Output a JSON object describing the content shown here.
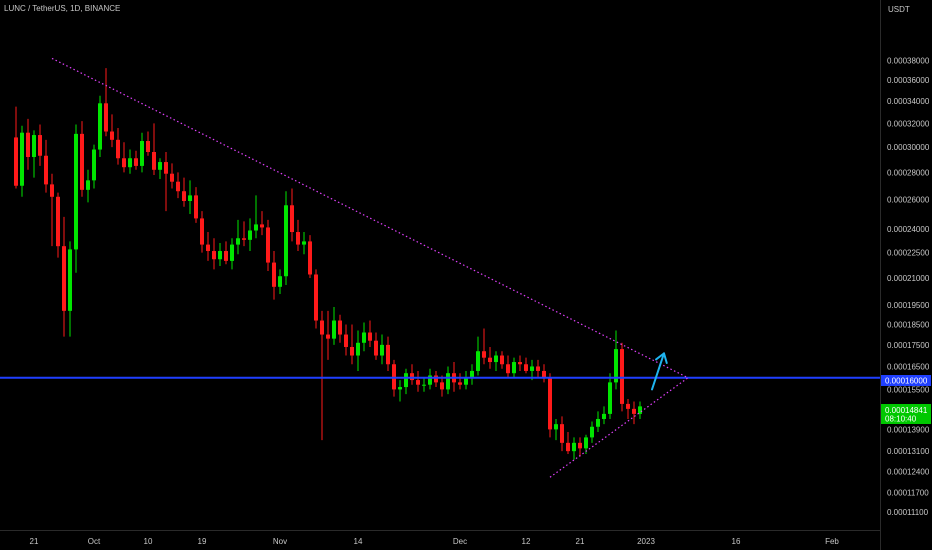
{
  "header": {
    "symbol": "LUNC / TetherUS, 1D, BINANCE"
  },
  "axis": {
    "currency": "USDT",
    "price_ticks": [
      "0.00038000",
      "0.00036000",
      "0.00034000",
      "0.00032000",
      "0.00030000",
      "0.00028000",
      "0.00026000",
      "0.00024000",
      "0.00022500",
      "0.00021000",
      "0.00019500",
      "0.00018500",
      "0.00017500",
      "0.00016500",
      "0.00015500",
      "0.00013900",
      "0.00013100",
      "0.00012400",
      "0.00011700",
      "0.00011100"
    ],
    "time_ticks": [
      "21",
      "Oct",
      "10",
      "19",
      "Nov",
      "14",
      "Dec",
      "12",
      "21",
      "2023",
      "16",
      "Feb",
      "13"
    ],
    "blue_line_label": "0.00016000",
    "current_price_label": "0.00014841",
    "countdown_label": "08:10:40"
  },
  "colors": {
    "background": "#000000",
    "up": "#00e600",
    "down": "#ff1a1a",
    "trendline": "#e040fb",
    "level_line": "#1f3fff",
    "arrow": "#1fb5f0",
    "current_price_bg": "#00c800"
  },
  "chart_data": {
    "type": "candlestick",
    "title": "LUNC / TetherUS, 1D, BINANCE",
    "y_unit": "USDT",
    "y_scale": "log",
    "ylim": [
      0.000108,
      0.000415
    ],
    "x_tick_labels": [
      "21",
      "Oct",
      "10",
      "19",
      "Nov",
      "14",
      "Dec",
      "12",
      "21",
      "2023",
      "16",
      "Feb",
      "13"
    ],
    "candles": [
      {
        "date": "2022-09-18",
        "o": 0.000308,
        "h": 0.000335,
        "l": 0.000268,
        "c": 0.00027
      },
      {
        "date": "2022-09-19",
        "o": 0.00027,
        "h": 0.000318,
        "l": 0.000262,
        "c": 0.000312
      },
      {
        "date": "2022-09-20",
        "o": 0.000312,
        "h": 0.000324,
        "l": 0.000282,
        "c": 0.000292
      },
      {
        "date": "2022-09-21",
        "o": 0.000292,
        "h": 0.000314,
        "l": 0.000276,
        "c": 0.00031
      },
      {
        "date": "2022-09-22",
        "o": 0.00031,
        "h": 0.000319,
        "l": 0.000285,
        "c": 0.000293
      },
      {
        "date": "2022-09-23",
        "o": 0.000293,
        "h": 0.000306,
        "l": 0.000265,
        "c": 0.000271
      },
      {
        "date": "2022-09-24",
        "o": 0.000271,
        "h": 0.000279,
        "l": 0.000229,
        "c": 0.000262
      },
      {
        "date": "2022-09-25",
        "o": 0.000262,
        "h": 0.000265,
        "l": 0.000222,
        "c": 0.000229
      },
      {
        "date": "2022-09-26",
        "o": 0.000229,
        "h": 0.000248,
        "l": 0.000179,
        "c": 0.000192
      },
      {
        "date": "2022-09-27",
        "o": 0.000192,
        "h": 0.000232,
        "l": 0.000179,
        "c": 0.000227
      },
      {
        "date": "2022-09-28",
        "o": 0.000227,
        "h": 0.000319,
        "l": 0.000213,
        "c": 0.000311
      },
      {
        "date": "2022-09-29",
        "o": 0.000311,
        "h": 0.000322,
        "l": 0.000262,
        "c": 0.000267
      },
      {
        "date": "2022-09-30",
        "o": 0.000267,
        "h": 0.000282,
        "l": 0.000258,
        "c": 0.000274
      },
      {
        "date": "2022-10-01",
        "o": 0.000274,
        "h": 0.000302,
        "l": 0.000268,
        "c": 0.000298
      },
      {
        "date": "2022-10-02",
        "o": 0.000298,
        "h": 0.000345,
        "l": 0.000292,
        "c": 0.000338
      },
      {
        "date": "2022-10-03",
        "o": 0.000338,
        "h": 0.000372,
        "l": 0.000309,
        "c": 0.000313
      },
      {
        "date": "2022-10-04",
        "o": 0.000313,
        "h": 0.000328,
        "l": 0.0003,
        "c": 0.000306
      },
      {
        "date": "2022-10-05",
        "o": 0.000306,
        "h": 0.000316,
        "l": 0.000286,
        "c": 0.000291
      },
      {
        "date": "2022-10-06",
        "o": 0.000291,
        "h": 0.000304,
        "l": 0.00028,
        "c": 0.000284
      },
      {
        "date": "2022-10-07",
        "o": 0.000284,
        "h": 0.000298,
        "l": 0.000279,
        "c": 0.000291
      },
      {
        "date": "2022-10-08",
        "o": 0.000291,
        "h": 0.000297,
        "l": 0.000282,
        "c": 0.000285
      },
      {
        "date": "2022-10-09",
        "o": 0.000285,
        "h": 0.000312,
        "l": 0.00028,
        "c": 0.000305
      },
      {
        "date": "2022-10-10",
        "o": 0.000305,
        "h": 0.000313,
        "l": 0.000293,
        "c": 0.000296
      },
      {
        "date": "2022-10-11",
        "o": 0.000296,
        "h": 0.00032,
        "l": 0.000278,
        "c": 0.000282
      },
      {
        "date": "2022-10-12",
        "o": 0.000282,
        "h": 0.000291,
        "l": 0.000275,
        "c": 0.000288
      },
      {
        "date": "2022-10-13",
        "o": 0.000288,
        "h": 0.000296,
        "l": 0.000252,
        "c": 0.000279
      },
      {
        "date": "2022-10-14",
        "o": 0.000279,
        "h": 0.000287,
        "l": 0.000268,
        "c": 0.000273
      },
      {
        "date": "2022-10-15",
        "o": 0.000273,
        "h": 0.00028,
        "l": 0.000261,
        "c": 0.000266
      },
      {
        "date": "2022-10-16",
        "o": 0.000266,
        "h": 0.000276,
        "l": 0.000255,
        "c": 0.000259
      },
      {
        "date": "2022-10-17",
        "o": 0.000259,
        "h": 0.000274,
        "l": 0.00025,
        "c": 0.000263
      },
      {
        "date": "2022-10-18",
        "o": 0.000263,
        "h": 0.000269,
        "l": 0.000244,
        "c": 0.000247
      },
      {
        "date": "2022-10-19",
        "o": 0.000247,
        "h": 0.000252,
        "l": 0.000225,
        "c": 0.00023
      },
      {
        "date": "2022-10-20",
        "o": 0.00023,
        "h": 0.000238,
        "l": 0.00022,
        "c": 0.000226
      },
      {
        "date": "2022-10-21",
        "o": 0.000226,
        "h": 0.000234,
        "l": 0.000215,
        "c": 0.000221
      },
      {
        "date": "2022-10-22",
        "o": 0.000221,
        "h": 0.000231,
        "l": 0.000217,
        "c": 0.000226
      },
      {
        "date": "2022-10-23",
        "o": 0.000226,
        "h": 0.000232,
        "l": 0.000218,
        "c": 0.00022
      },
      {
        "date": "2022-10-24",
        "o": 0.00022,
        "h": 0.000234,
        "l": 0.000215,
        "c": 0.00023
      },
      {
        "date": "2022-10-25",
        "o": 0.00023,
        "h": 0.000246,
        "l": 0.000224,
        "c": 0.000234
      },
      {
        "date": "2022-10-26",
        "o": 0.000234,
        "h": 0.000245,
        "l": 0.000229,
        "c": 0.000233
      },
      {
        "date": "2022-10-27",
        "o": 0.000233,
        "h": 0.000247,
        "l": 0.000226,
        "c": 0.000239
      },
      {
        "date": "2022-10-28",
        "o": 0.000239,
        "h": 0.000263,
        "l": 0.000234,
        "c": 0.000243
      },
      {
        "date": "2022-10-29",
        "o": 0.000243,
        "h": 0.000252,
        "l": 0.000236,
        "c": 0.000241
      },
      {
        "date": "2022-10-30",
        "o": 0.000241,
        "h": 0.000246,
        "l": 0.000214,
        "c": 0.000219
      },
      {
        "date": "2022-10-31",
        "o": 0.000219,
        "h": 0.000226,
        "l": 0.000198,
        "c": 0.000205
      },
      {
        "date": "2022-11-01",
        "o": 0.000205,
        "h": 0.000215,
        "l": 0.000201,
        "c": 0.000211
      },
      {
        "date": "2022-11-02",
        "o": 0.000211,
        "h": 0.000266,
        "l": 0.000206,
        "c": 0.000256
      },
      {
        "date": "2022-11-03",
        "o": 0.000256,
        "h": 0.000268,
        "l": 0.000232,
        "c": 0.000238
      },
      {
        "date": "2022-11-04",
        "o": 0.000238,
        "h": 0.000246,
        "l": 0.000226,
        "c": 0.00023
      },
      {
        "date": "2022-11-05",
        "o": 0.00023,
        "h": 0.000238,
        "l": 0.000224,
        "c": 0.000232
      },
      {
        "date": "2022-11-06",
        "o": 0.000232,
        "h": 0.000236,
        "l": 0.00021,
        "c": 0.000212
      },
      {
        "date": "2022-11-07",
        "o": 0.000212,
        "h": 0.000215,
        "l": 0.000183,
        "c": 0.000187
      },
      {
        "date": "2022-11-08",
        "o": 0.000187,
        "h": 0.000192,
        "l": 0.000135,
        "c": 0.00018
      },
      {
        "date": "2022-11-09",
        "o": 0.00018,
        "h": 0.000192,
        "l": 0.000168,
        "c": 0.000178
      },
      {
        "date": "2022-11-10",
        "o": 0.000178,
        "h": 0.000194,
        "l": 0.000175,
        "c": 0.000187
      },
      {
        "date": "2022-11-11",
        "o": 0.000187,
        "h": 0.00019,
        "l": 0.000176,
        "c": 0.00018
      },
      {
        "date": "2022-11-12",
        "o": 0.00018,
        "h": 0.000185,
        "l": 0.00017,
        "c": 0.000174
      },
      {
        "date": "2022-11-13",
        "o": 0.000174,
        "h": 0.000185,
        "l": 0.000166,
        "c": 0.00017
      },
      {
        "date": "2022-11-14",
        "o": 0.00017,
        "h": 0.000182,
        "l": 0.000163,
        "c": 0.000176
      },
      {
        "date": "2022-11-15",
        "o": 0.000176,
        "h": 0.000186,
        "l": 0.000172,
        "c": 0.000181
      },
      {
        "date": "2022-11-16",
        "o": 0.000181,
        "h": 0.000187,
        "l": 0.000174,
        "c": 0.000177
      },
      {
        "date": "2022-11-17",
        "o": 0.000177,
        "h": 0.000181,
        "l": 0.000168,
        "c": 0.00017
      },
      {
        "date": "2022-11-18",
        "o": 0.00017,
        "h": 0.00018,
        "l": 0.000166,
        "c": 0.000175
      },
      {
        "date": "2022-11-19",
        "o": 0.000175,
        "h": 0.000179,
        "l": 0.000163,
        "c": 0.000166
      },
      {
        "date": "2022-11-20",
        "o": 0.000166,
        "h": 0.000168,
        "l": 0.000152,
        "c": 0.000155
      },
      {
        "date": "2022-11-21",
        "o": 0.000155,
        "h": 0.000159,
        "l": 0.00015,
        "c": 0.000156
      },
      {
        "date": "2022-11-22",
        "o": 0.000156,
        "h": 0.000164,
        "l": 0.000153,
        "c": 0.000162
      },
      {
        "date": "2022-11-23",
        "o": 0.000162,
        "h": 0.000166,
        "l": 0.000157,
        "c": 0.000159
      },
      {
        "date": "2022-11-24",
        "o": 0.000159,
        "h": 0.000163,
        "l": 0.000154,
        "c": 0.000157
      },
      {
        "date": "2022-11-25",
        "o": 0.000157,
        "h": 0.00016,
        "l": 0.000154,
        "c": 0.000157
      },
      {
        "date": "2022-11-26",
        "o": 0.000157,
        "h": 0.000164,
        "l": 0.000155,
        "c": 0.000161
      },
      {
        "date": "2022-11-27",
        "o": 0.000161,
        "h": 0.000163,
        "l": 0.000156,
        "c": 0.000158
      },
      {
        "date": "2022-11-28",
        "o": 0.000158,
        "h": 0.000161,
        "l": 0.000152,
        "c": 0.000155
      },
      {
        "date": "2022-11-29",
        "o": 0.000155,
        "h": 0.000165,
        "l": 0.000153,
        "c": 0.000162
      },
      {
        "date": "2022-11-30",
        "o": 0.000162,
        "h": 0.000167,
        "l": 0.000154,
        "c": 0.000158
      },
      {
        "date": "2022-12-01",
        "o": 0.000158,
        "h": 0.000162,
        "l": 0.000155,
        "c": 0.000157
      },
      {
        "date": "2022-12-02",
        "o": 0.000157,
        "h": 0.000163,
        "l": 0.000155,
        "c": 0.00016
      },
      {
        "date": "2022-12-03",
        "o": 0.00016,
        "h": 0.000166,
        "l": 0.000157,
        "c": 0.000163
      },
      {
        "date": "2022-12-04",
        "o": 0.000163,
        "h": 0.000179,
        "l": 0.000161,
        "c": 0.000172
      },
      {
        "date": "2022-12-05",
        "o": 0.000172,
        "h": 0.000183,
        "l": 0.000166,
        "c": 0.000169
      },
      {
        "date": "2022-12-06",
        "o": 0.000169,
        "h": 0.000174,
        "l": 0.000164,
        "c": 0.000167
      },
      {
        "date": "2022-12-07",
        "o": 0.000167,
        "h": 0.000172,
        "l": 0.000163,
        "c": 0.00017
      },
      {
        "date": "2022-12-08",
        "o": 0.00017,
        "h": 0.000172,
        "l": 0.000164,
        "c": 0.000166
      },
      {
        "date": "2022-12-09",
        "o": 0.000166,
        "h": 0.00017,
        "l": 0.00016,
        "c": 0.000162
      },
      {
        "date": "2022-12-10",
        "o": 0.000162,
        "h": 0.000169,
        "l": 0.00016,
        "c": 0.000167
      },
      {
        "date": "2022-12-11",
        "o": 0.000167,
        "h": 0.00017,
        "l": 0.000163,
        "c": 0.000166
      },
      {
        "date": "2022-12-12",
        "o": 0.000166,
        "h": 0.000169,
        "l": 0.000162,
        "c": 0.000163
      },
      {
        "date": "2022-12-13",
        "o": 0.000163,
        "h": 0.000168,
        "l": 0.000159,
        "c": 0.000165
      },
      {
        "date": "2022-12-14",
        "o": 0.000165,
        "h": 0.000168,
        "l": 0.00016,
        "c": 0.000163
      },
      {
        "date": "2022-12-15",
        "o": 0.000163,
        "h": 0.000166,
        "l": 0.000158,
        "c": 0.00016
      },
      {
        "date": "2022-12-16",
        "o": 0.00016,
        "h": 0.000162,
        "l": 0.000136,
        "c": 0.000139
      },
      {
        "date": "2022-12-17",
        "o": 0.000139,
        "h": 0.000143,
        "l": 0.000135,
        "c": 0.000141
      },
      {
        "date": "2022-12-18",
        "o": 0.000141,
        "h": 0.000144,
        "l": 0.000131,
        "c": 0.000134
      },
      {
        "date": "2022-12-19",
        "o": 0.000134,
        "h": 0.000138,
        "l": 0.00013,
        "c": 0.000131
      },
      {
        "date": "2022-12-20",
        "o": 0.000131,
        "h": 0.000136,
        "l": 0.000128,
        "c": 0.000134
      },
      {
        "date": "2022-12-21",
        "o": 0.000134,
        "h": 0.000136,
        "l": 0.000129,
        "c": 0.000132
      },
      {
        "date": "2022-12-22",
        "o": 0.000132,
        "h": 0.000137,
        "l": 0.00013,
        "c": 0.000136
      },
      {
        "date": "2022-12-23",
        "o": 0.000136,
        "h": 0.000142,
        "l": 0.000134,
        "c": 0.00014
      },
      {
        "date": "2022-12-24",
        "o": 0.00014,
        "h": 0.000146,
        "l": 0.000138,
        "c": 0.000143
      },
      {
        "date": "2022-12-25",
        "o": 0.000143,
        "h": 0.000148,
        "l": 0.000141,
        "c": 0.000145
      },
      {
        "date": "2022-12-26",
        "o": 0.000145,
        "h": 0.000162,
        "l": 0.000143,
        "c": 0.000158
      },
      {
        "date": "2022-12-27",
        "o": 0.000158,
        "h": 0.000182,
        "l": 0.000155,
        "c": 0.000173
      },
      {
        "date": "2022-12-28",
        "o": 0.000173,
        "h": 0.000176,
        "l": 0.000146,
        "c": 0.000149
      },
      {
        "date": "2022-12-29",
        "o": 0.000149,
        "h": 0.000151,
        "l": 0.000143,
        "c": 0.000147
      },
      {
        "date": "2022-12-30",
        "o": 0.000147,
        "h": 0.00015,
        "l": 0.000141,
        "c": 0.000145
      },
      {
        "date": "2022-12-31",
        "o": 0.000145,
        "h": 0.00015,
        "l": 0.000143,
        "c": 0.000148
      }
    ],
    "annotations": {
      "horizontal_level": 0.00016,
      "current_price": 0.00014841,
      "upper_trendline": [
        {
          "date": "2022-09-24",
          "price": 0.000382
        },
        {
          "date": "2023-01-08",
          "price": 0.00016
        }
      ],
      "lower_trendline": [
        {
          "date": "2022-12-16",
          "price": 0.000122
        },
        {
          "date": "2023-01-08",
          "price": 0.00016
        }
      ],
      "arrow": [
        {
          "date": "2023-01-02",
          "price": 0.000155
        },
        {
          "date": "2023-01-04",
          "price": 0.000171
        }
      ]
    }
  }
}
